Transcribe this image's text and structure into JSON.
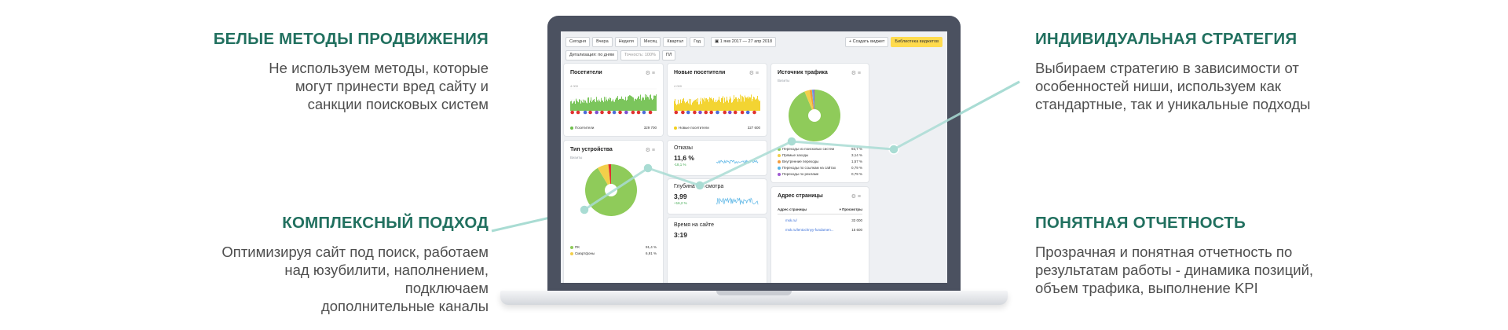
{
  "features": [
    {
      "id": "f1",
      "title": "БЕЛЫЕ МЕТОДЫ ПРОДВИЖЕНИЯ",
      "lines": [
        "Не используем методы, которые",
        "могут принести вред сайту и",
        "санкции поисковых систем"
      ]
    },
    {
      "id": "f2",
      "title": "КОМПЛЕКСНЫЙ ПОДХОД",
      "lines": [
        "Оптимизируя сайт под поиск, работаем",
        "над юзубилити, наполнением, подключаем",
        "дополнительные каналы"
      ]
    },
    {
      "id": "f3",
      "title": "ИНДИВИДУАЛЬНАЯ СТРАТЕГИЯ",
      "lines": [
        "Выбираем стратегию в зависимости от",
        "особенностей ниши, используем как",
        "стандартные, так и уникальные подходы"
      ]
    },
    {
      "id": "f4",
      "title": "ПОНЯТНАЯ ОТЧЕТНОСТЬ",
      "lines": [
        "Прозрачная и понятная отчетность по",
        "результатам работы - динамика позиций,",
        "объем трафика, выполнение KPI"
      ]
    }
  ],
  "dashboard": {
    "periods": [
      "Сегодня",
      "Вчера",
      "Неделя",
      "Месяц",
      "Квартал",
      "Год"
    ],
    "date_range": "1 янв 2017 — 27 апр 2018",
    "create_widget": "+ Создать виджет",
    "widget_library": "Библиотека виджетов",
    "detail": "Детализация: по дням",
    "accuracy": "Точность: 100%",
    "segment": "ПЛ",
    "visitors": {
      "title": "Посетители",
      "legend": "Посетители",
      "value": "329 700",
      "ymax": "4 000"
    },
    "new_visitors": {
      "title": "Новые посетители",
      "legend": "Новые посетители",
      "value": "327 600",
      "ymax": "4 000"
    },
    "traffic_source": {
      "title": "Источник трафика",
      "sub": "Визиты",
      "rows": [
        {
          "label": "Переходы из поисковых систем",
          "value": "93,7 %",
          "color": "#8fcb5a"
        },
        {
          "label": "Прямые заходы",
          "value": "3,14 %",
          "color": "#f2cf4a"
        },
        {
          "label": "Внутренние переходы",
          "value": "1,57 %",
          "color": "#f39c3c"
        },
        {
          "label": "Переходы по ссылкам на сайтах",
          "value": "0,79 %",
          "color": "#55b6e8"
        },
        {
          "label": "Переходы по рекламе",
          "value": "0,79 %",
          "color": "#a05ad3"
        }
      ]
    },
    "device": {
      "title": "Тип устройства",
      "sub": "Визиты",
      "rows": [
        {
          "label": "ПК",
          "value": "91,4 %",
          "color": "#8fcb5a"
        },
        {
          "label": "Смартфоны",
          "value": "6,91 %",
          "color": "#f2cf4a"
        }
      ]
    },
    "bounce": {
      "title": "Отказы",
      "value": "11,6 %",
      "delta": "-18,1 %"
    },
    "depth": {
      "title": "Глубина просмотра",
      "value": "3,99",
      "delta": "+16,2 %"
    },
    "time": {
      "title": "Время на сайте",
      "value": "3:19"
    },
    "pages": {
      "title": "Адрес страницы",
      "col1": "Адрес страницы",
      "col2": "Просмотры",
      "rows": [
        {
          "url": "msk.ru/",
          "views": "33 000"
        },
        {
          "url": "msk.ru/lentochnyy-fundamen...",
          "views": "15 600"
        }
      ]
    },
    "colors": {
      "accent_green": "#21705f",
      "line": "#a9dcd3",
      "pie_green": "#8fcb5a",
      "bar_green": "#6dbf4a",
      "bar_yellow": "#f2cf1c",
      "spark_blue": "#5bb6e6"
    }
  }
}
